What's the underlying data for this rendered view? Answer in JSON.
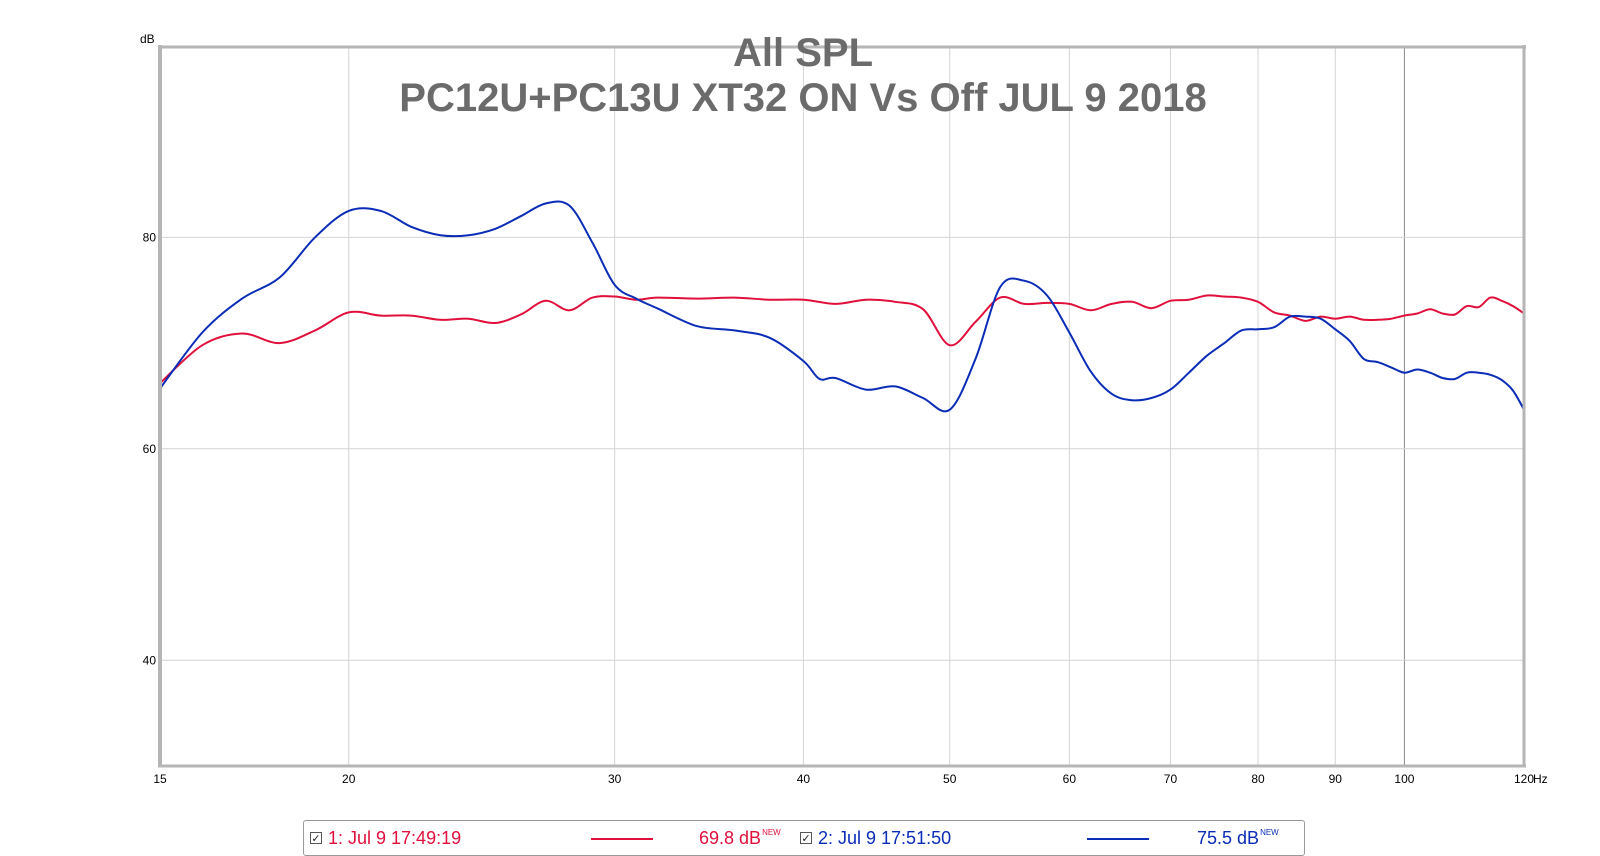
{
  "chart_data": {
    "type": "line",
    "title": "All SPL",
    "subtitle": "PC12U+PC13U XT32 ON Vs Off JUL 9 2018",
    "ylabel": "dB",
    "x_unit": "Hz",
    "x_scale": "log",
    "xlim": [
      15,
      120
    ],
    "ylim": [
      30,
      98
    ],
    "x_ticks": [
      15,
      20,
      30,
      40,
      50,
      60,
      70,
      80,
      90,
      100,
      120
    ],
    "x_tick_labels": [
      "15",
      "20",
      "30",
      "40",
      "50",
      "60",
      "70",
      "80",
      "90",
      "100",
      "120"
    ],
    "y_ticks": [
      40,
      60,
      80
    ],
    "y_tick_labels": [
      "40",
      "60",
      "80"
    ],
    "grid": true,
    "legend_position": "bottom",
    "series": [
      {
        "name": "1: Jul 9 17:49:19",
        "color": "#e0103c",
        "legend_value": "69.8 dB",
        "legend_badge": "NEW",
        "x": [
          15,
          16,
          17,
          18,
          19,
          20,
          21,
          22,
          23,
          24,
          25,
          26,
          27,
          28,
          29,
          30,
          31,
          32,
          34,
          36,
          38,
          40,
          42,
          44,
          46,
          48,
          50,
          52,
          54,
          56,
          58,
          60,
          62,
          64,
          66,
          68,
          70,
          72,
          74,
          76,
          78,
          80,
          82,
          84,
          86,
          88,
          90,
          92,
          94,
          96,
          98,
          100,
          102,
          104,
          106,
          108,
          110,
          112,
          114,
          116,
          118,
          120
        ],
        "y": [
          66.2,
          69.8,
          70.9,
          70.0,
          71.2,
          72.9,
          72.6,
          72.6,
          72.2,
          72.3,
          71.9,
          72.7,
          74.0,
          73.1,
          74.3,
          74.4,
          74.1,
          74.3,
          74.2,
          74.3,
          74.1,
          74.1,
          73.7,
          74.1,
          73.9,
          73.2,
          69.8,
          72.0,
          74.3,
          73.7,
          73.8,
          73.7,
          73.1,
          73.7,
          73.9,
          73.3,
          74.0,
          74.1,
          74.5,
          74.4,
          74.3,
          73.9,
          72.9,
          72.6,
          72.1,
          72.5,
          72.3,
          72.5,
          72.2,
          72.2,
          72.3,
          72.6,
          72.8,
          73.2,
          72.8,
          72.7,
          73.5,
          73.4,
          74.3,
          74.0,
          73.5,
          72.8
        ]
      },
      {
        "name": "2: Jul 9 17:51:50",
        "color": "#0a2cb6",
        "legend_value": "75.5 dB",
        "legend_badge": "NEW",
        "x": [
          15,
          16,
          17,
          18,
          19,
          20,
          21,
          22,
          23,
          24,
          25,
          26,
          27,
          28,
          29,
          30,
          31,
          32,
          34,
          36,
          38,
          40,
          41,
          42,
          44,
          46,
          48,
          50,
          52,
          54,
          56,
          58,
          60,
          62,
          64,
          66,
          68,
          70,
          72,
          74,
          76,
          78,
          80,
          82,
          84,
          86,
          88,
          90,
          92,
          94,
          96,
          98,
          100,
          102,
          104,
          106,
          108,
          110,
          112,
          114,
          116,
          118,
          120
        ],
        "y": [
          65.7,
          71.0,
          74.2,
          76.2,
          80.0,
          82.5,
          82.5,
          81.0,
          80.2,
          80.2,
          80.8,
          82.0,
          83.2,
          83.0,
          79.5,
          75.5,
          74.2,
          73.3,
          71.6,
          71.2,
          70.5,
          68.3,
          66.6,
          66.7,
          65.6,
          65.9,
          64.8,
          63.7,
          68.5,
          75.3,
          75.9,
          74.5,
          71.0,
          67.3,
          65.2,
          64.6,
          64.8,
          65.6,
          67.2,
          68.8,
          70.0,
          71.2,
          71.3,
          71.5,
          72.5,
          72.5,
          72.3,
          71.3,
          70.2,
          68.5,
          68.2,
          67.7,
          67.2,
          67.5,
          67.2,
          66.7,
          66.6,
          67.2,
          67.2,
          67.0,
          66.5,
          65.5,
          63.7
        ]
      }
    ]
  }
}
